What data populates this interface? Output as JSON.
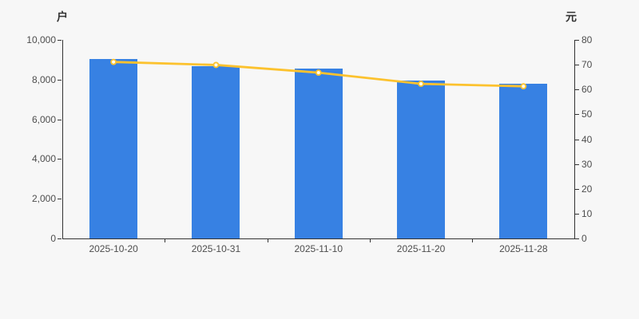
{
  "chart_data": {
    "type": "bar",
    "subtype": "bar-line-combo",
    "title": "",
    "categories": [
      "2025-10-20",
      "2025-10-31",
      "2025-11-10",
      "2025-11-20",
      "2025-11-28"
    ],
    "series": [
      {
        "type": "bar",
        "axis": "left",
        "color": "#3781e3",
        "values": [
          9040,
          8660,
          8550,
          7950,
          7790
        ]
      },
      {
        "type": "line",
        "axis": "right",
        "color": "#fcc22e",
        "marker_fill": "#fffdf0",
        "values": [
          71.1,
          69.9,
          66.8,
          62.3,
          61.3
        ]
      }
    ],
    "left_axis": {
      "unit": "户",
      "min": 0,
      "max": 10000,
      "ticks": [
        0,
        2000,
        4000,
        6000,
        8000,
        10000
      ],
      "tick_labels": [
        "0",
        "2,000",
        "4,000",
        "6,000",
        "8,000",
        "10,000"
      ]
    },
    "right_axis": {
      "unit": "元",
      "min": 0,
      "max": 80,
      "ticks": [
        0,
        10,
        20,
        30,
        40,
        50,
        60,
        70,
        80
      ],
      "tick_labels": [
        "0",
        "10",
        "20",
        "30",
        "40",
        "50",
        "60",
        "70",
        "80"
      ]
    },
    "grid": false,
    "legend": false,
    "colors": {
      "background": "#f7f7f7",
      "axis": "#333333",
      "tick_text": "#4d4d4d",
      "unit_text": "#333333"
    }
  }
}
